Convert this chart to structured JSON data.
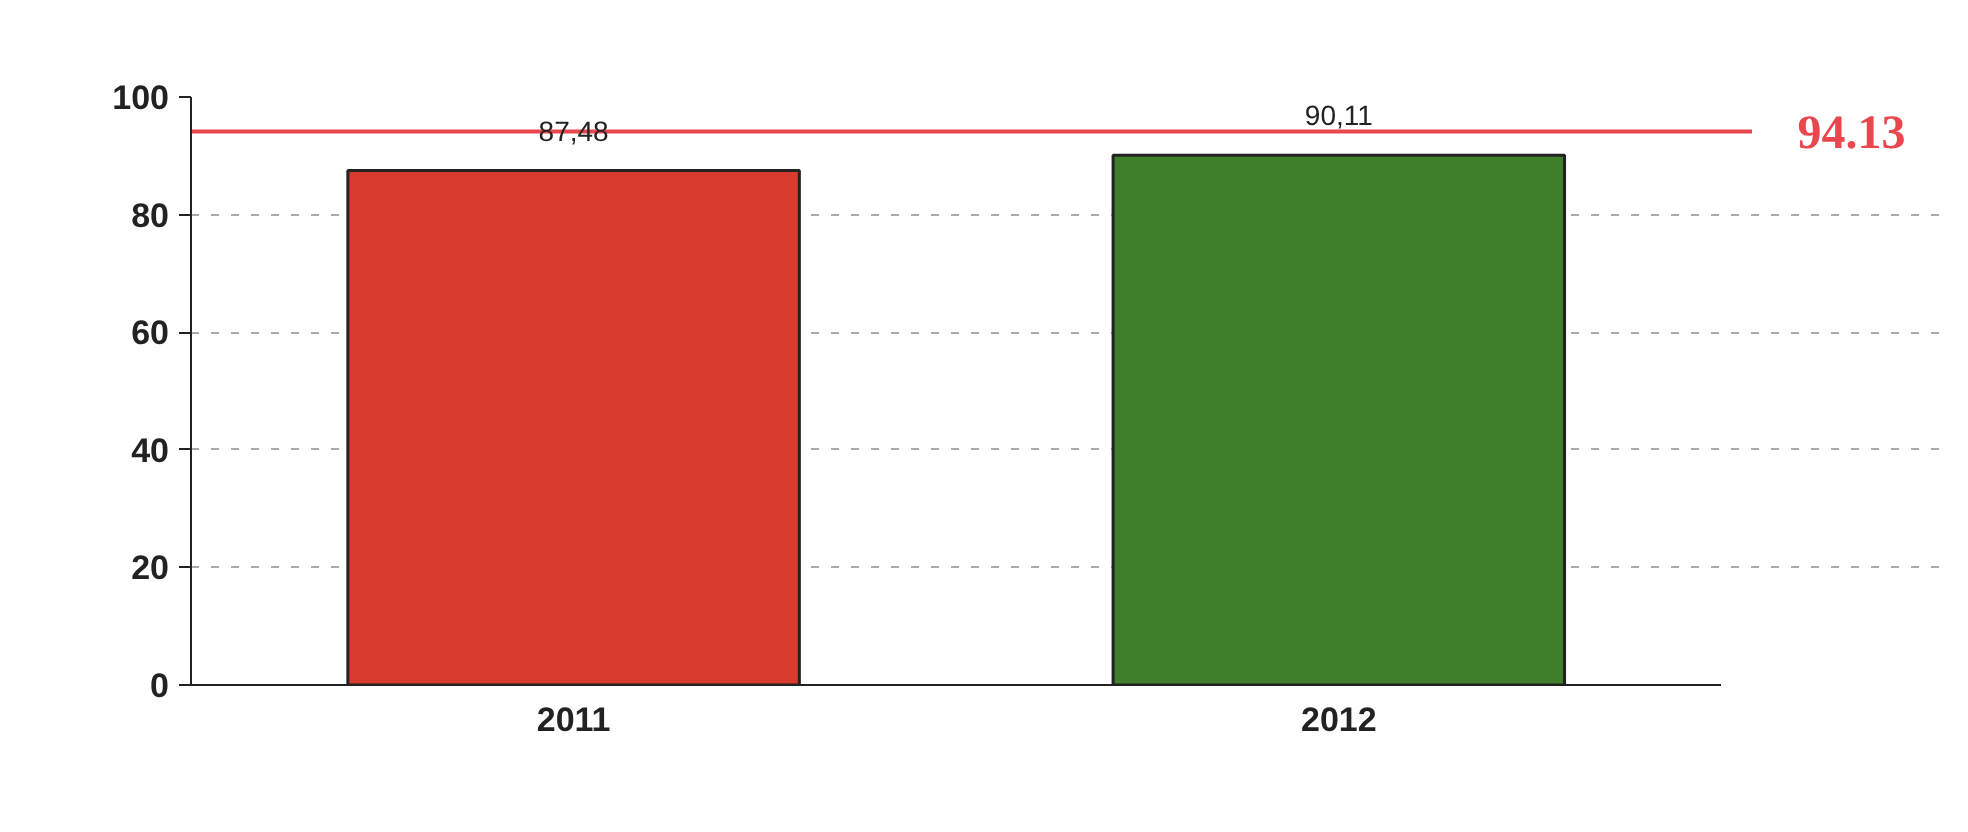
{
  "chart_data": {
    "type": "bar",
    "categories": [
      "2011",
      "2012"
    ],
    "series": [
      {
        "colors": [
          "#d93a2e",
          "#3f7f2a"
        ],
        "values": [
          87.48,
          90.11
        ],
        "value_labels": [
          "87,48",
          "90,11"
        ]
      }
    ],
    "ylim": [
      0,
      100
    ],
    "yticks": [
      0,
      20,
      40,
      60,
      80,
      100
    ],
    "grid": "y",
    "ref_lines": [
      {
        "axis": "y",
        "value": 94.13,
        "label": "94.13",
        "color": "#e8474d"
      }
    ]
  }
}
